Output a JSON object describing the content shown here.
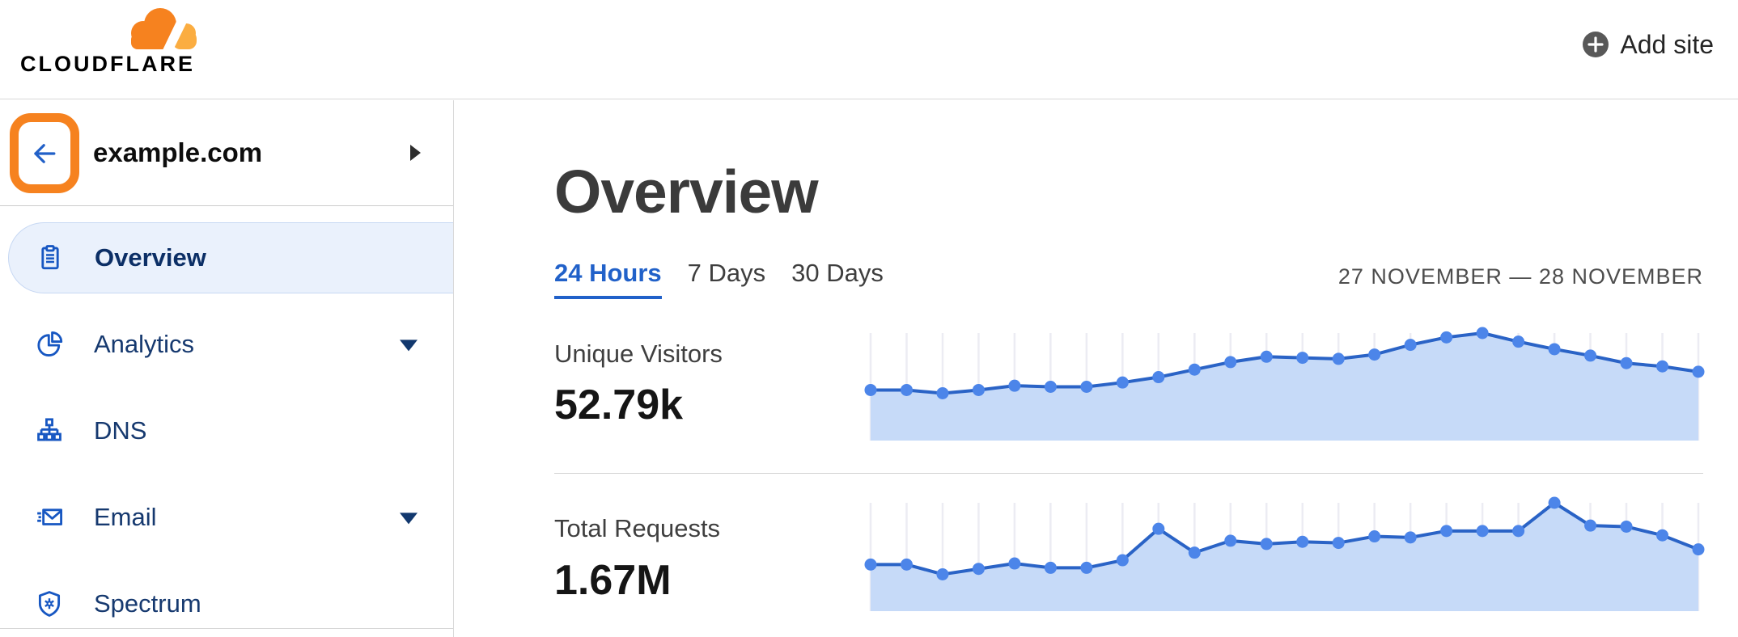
{
  "header": {
    "logo_text": "CLOUDFLARE",
    "add_site_label": "Add site"
  },
  "sidebar": {
    "site_selector": {
      "site_name": "example.com",
      "back_button_highlight_color": "#f6821f"
    },
    "items": [
      {
        "label": "Overview",
        "icon": "clipboard-icon",
        "active": true,
        "expandable": false
      },
      {
        "label": "Analytics",
        "icon": "pie-chart-icon",
        "active": false,
        "expandable": true
      },
      {
        "label": "DNS",
        "icon": "sitemap-icon",
        "active": false,
        "expandable": false
      },
      {
        "label": "Email",
        "icon": "email-icon",
        "active": false,
        "expandable": true
      },
      {
        "label": "Spectrum",
        "icon": "shield-icon",
        "active": false,
        "expandable": false
      }
    ]
  },
  "main": {
    "title": "Overview",
    "tabs": [
      {
        "label": "24 Hours",
        "active": true
      },
      {
        "label": "7 Days",
        "active": false
      },
      {
        "label": "30 Days",
        "active": false
      }
    ],
    "date_range": "27 NOVEMBER — 28 NOVEMBER",
    "metrics": [
      {
        "label": "Unique Visitors",
        "value": "52.79k"
      },
      {
        "label": "Total Requests",
        "value": "1.67M"
      }
    ]
  },
  "colors": {
    "brand_orange": "#f6821f",
    "brand_orange_light": "#fbad41",
    "nav_icon_blue": "#1757c2",
    "active_tab_blue": "#2161c9",
    "chart_line": "#2a63c6",
    "chart_dot": "#4c85e9",
    "chart_fill": "#c6daf8",
    "chart_grid": "#ececf3"
  },
  "chart_data": [
    {
      "type": "area",
      "title": "Unique Visitors",
      "total_displayed": "52.79k",
      "x": "24 hourly points, 27 November – 28 November",
      "ylabel": "",
      "xlabel": "",
      "axis_labels_shown": false,
      "grid": "vertical line at each point",
      "legend_position": "none",
      "values_pct_of_chart_height": [
        47,
        47,
        44,
        47,
        51,
        50,
        50,
        54,
        59,
        66,
        73,
        78,
        77,
        76,
        80,
        89,
        96,
        100,
        92,
        85,
        79,
        72,
        69,
        64
      ]
    },
    {
      "type": "area",
      "title": "Total Requests",
      "total_displayed": "1.67M",
      "x": "24 hourly points, 27 November – 28 November",
      "ylabel": "",
      "xlabel": "",
      "axis_labels_shown": false,
      "grid": "vertical line at each point",
      "legend_position": "none",
      "values_pct_of_chart_height": [
        43,
        43,
        34,
        39,
        44,
        40,
        40,
        47,
        76,
        54,
        65,
        62,
        64,
        63,
        69,
        68,
        74,
        74,
        74,
        100,
        79,
        78,
        70,
        57
      ]
    }
  ]
}
